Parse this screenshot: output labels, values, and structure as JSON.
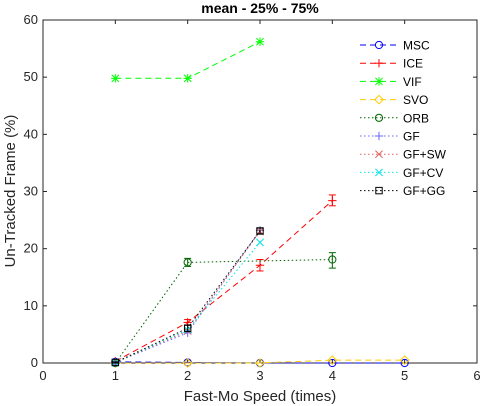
{
  "chart_data": {
    "type": "line",
    "title": "mean - 25% - 75%",
    "xlabel": "Fast-Mo Speed (times)",
    "ylabel": "Un-Tracked Frame (%)",
    "xlim": [
      0,
      6
    ],
    "ylim": [
      0,
      60
    ],
    "xticks": [
      "0",
      "1",
      "2",
      "3",
      "4",
      "5",
      "6"
    ],
    "yticks": [
      "0",
      "10",
      "20",
      "30",
      "40",
      "50",
      "60"
    ],
    "grid": false,
    "legend_position": "top-right",
    "series": [
      {
        "name": "MSC",
        "color": "#0000ff",
        "line": "dashed",
        "marker": "circle",
        "x": [
          1,
          2,
          3,
          4,
          5
        ],
        "y": [
          0.2,
          0.1,
          0.0,
          0.0,
          0.0
        ]
      },
      {
        "name": "ICE",
        "color": "#ff0000",
        "line": "dashed",
        "marker": "plus",
        "x": [
          1,
          2,
          3,
          4
        ],
        "y": [
          0.3,
          7.1,
          17.1,
          28.4
        ],
        "lo": [
          0.2,
          6.6,
          16.1,
          27.5
        ],
        "hi": [
          0.4,
          7.6,
          18.1,
          29.4
        ]
      },
      {
        "name": "VIF",
        "color": "#00ff00",
        "line": "dashed",
        "marker": "star",
        "x": [
          1,
          2,
          3
        ],
        "y": [
          49.8,
          49.8,
          56.2
        ]
      },
      {
        "name": "SVO",
        "color": "#ffcc00",
        "line": "dashed",
        "marker": "diamond",
        "x": [
          1,
          2,
          3,
          4,
          5
        ],
        "y": [
          0.0,
          0.0,
          0.0,
          0.5,
          0.5
        ]
      },
      {
        "name": "ORB",
        "color": "#006400",
        "line": "dotted",
        "marker": "circle",
        "x": [
          1,
          2,
          4
        ],
        "y": [
          0.0,
          17.6,
          18.1
        ],
        "lo": [
          0.0,
          16.9,
          16.6
        ],
        "hi": [
          0.0,
          18.3,
          19.3
        ]
      },
      {
        "name": "GF",
        "color": "#6666ff",
        "line": "dotted",
        "marker": "plus",
        "x": [
          1,
          2,
          3
        ],
        "y": [
          0.1,
          5.3,
          23.2
        ]
      },
      {
        "name": "GF+SW",
        "color": "#e06060",
        "line": "dotted",
        "marker": "x",
        "x": [
          1,
          2,
          3
        ],
        "y": [
          0.1,
          5.6,
          23.0
        ]
      },
      {
        "name": "GF+CV",
        "color": "#00e5e5",
        "line": "dotted",
        "marker": "x",
        "x": [
          1,
          2,
          3
        ],
        "y": [
          0.1,
          5.8,
          21.1
        ]
      },
      {
        "name": "GF+GG",
        "color": "#000000",
        "line": "dotted",
        "marker": "square",
        "x": [
          1,
          2,
          3
        ],
        "y": [
          0.1,
          6.1,
          23.1
        ],
        "lo": [
          0.0,
          5.5,
          22.6
        ],
        "hi": [
          0.2,
          6.6,
          23.6
        ]
      }
    ]
  }
}
